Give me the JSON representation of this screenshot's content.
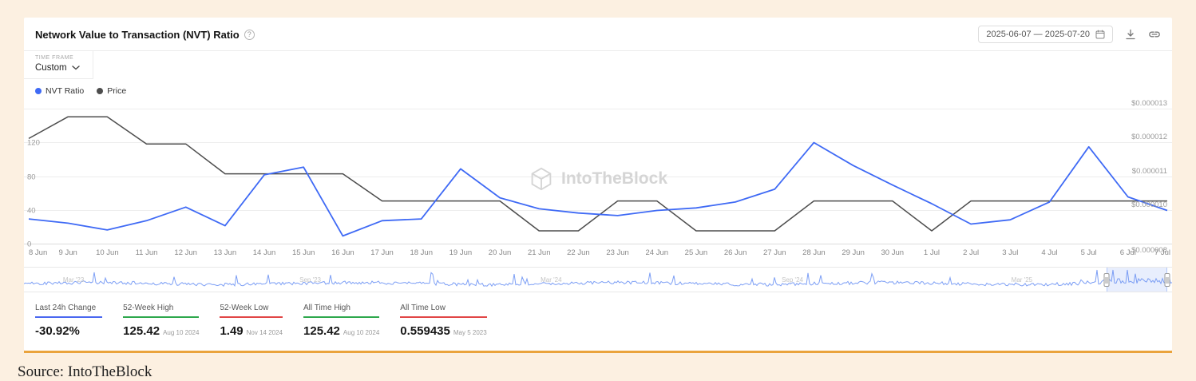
{
  "page": {
    "source_caption": "Source: IntoTheBlock"
  },
  "header": {
    "title": "Network Value to Transaction (NVT) Ratio",
    "info_glyph": "?",
    "date_range": "2025-06-07 — 2025-07-20"
  },
  "controls": {
    "time_frame_label": "TIME FRAME",
    "time_frame_value": "Custom"
  },
  "legend": [
    {
      "label": "NVT Ratio",
      "color": "#3f6af5"
    },
    {
      "label": "Price",
      "color": "#4d4d4d"
    }
  ],
  "watermark": {
    "text": "IntoTheBlock"
  },
  "chart_data": {
    "type": "line",
    "title": "Network Value to Transaction (NVT) Ratio",
    "grid": true,
    "legend_position": "top-left",
    "x": [
      "8 Jun",
      "9 Jun",
      "10 Jun",
      "11 Jun",
      "12 Jun",
      "13 Jun",
      "14 Jun",
      "15 Jun",
      "16 Jun",
      "17 Jun",
      "18 Jun",
      "19 Jun",
      "20 Jun",
      "21 Jun",
      "22 Jun",
      "23 Jun",
      "24 Jun",
      "25 Jun",
      "26 Jun",
      "27 Jun",
      "28 Jun",
      "29 Jun",
      "30 Jun",
      "1 Jul",
      "2 Jul",
      "3 Jul",
      "4 Jul",
      "5 Jul",
      "6 Jul",
      "7 Jul"
    ],
    "series": [
      {
        "name": "NVT Ratio",
        "axis": "left",
        "color": "#3f6af5",
        "values": [
          30,
          25,
          17,
          28,
          44,
          22,
          82,
          91,
          10,
          28,
          30,
          89,
          55,
          42,
          37,
          34,
          40,
          43,
          50,
          65,
          120,
          93,
          70,
          48,
          24,
          29,
          50,
          115,
          56,
          40
        ]
      },
      {
        "name": "Price",
        "axis": "right",
        "color": "#4d4d4d",
        "values": [
          1.19e-05,
          1.27e-05,
          1.27e-05,
          1.17e-05,
          1.17e-05,
          1.06e-05,
          1.06e-05,
          1.06e-05,
          1.06e-05,
          9.6e-06,
          9.6e-06,
          9.6e-06,
          9.6e-06,
          8.5e-06,
          8.5e-06,
          9.6e-06,
          9.6e-06,
          8.5e-06,
          8.5e-06,
          8.5e-06,
          9.6e-06,
          9.6e-06,
          9.6e-06,
          8.5e-06,
          9.6e-06,
          9.6e-06,
          9.6e-06,
          9.6e-06,
          9.6e-06,
          9.6e-06
        ]
      }
    ],
    "left_axis": {
      "min": 0,
      "max": 160,
      "tick_labels_top_to_bottom": [
        "",
        "120",
        "80",
        "40",
        "0"
      ]
    },
    "right_axis": {
      "min": 8e-06,
      "max": 1.3e-05,
      "tick_labels_top_to_bottom": [
        "$0.000013",
        "$0.000012",
        "$0.000011",
        "$0.000010",
        "$0.000008"
      ]
    }
  },
  "navigator": {
    "labels": [
      {
        "text": "Mar '23",
        "pct": 3.4
      },
      {
        "text": "Sep '23",
        "pct": 24
      },
      {
        "text": "Mar '24",
        "pct": 45
      },
      {
        "text": "Sep '24",
        "pct": 66
      },
      {
        "text": "Mar '25",
        "pct": 86
      }
    ],
    "selection_start_pct": 94.3,
    "selection_end_pct": 99.6
  },
  "stats": [
    {
      "label": "Last 24h Change",
      "value": "-30.92%",
      "date": "",
      "color": "#4a68f0"
    },
    {
      "label": "52-Week High",
      "value": "125.42",
      "date": "Aug 10 2024",
      "color": "#2ea84d"
    },
    {
      "label": "52-Week Low",
      "value": "1.49",
      "date": "Nov 14 2024",
      "color": "#e14747"
    },
    {
      "label": "All Time High",
      "value": "125.42",
      "date": "Aug 10 2024",
      "color": "#2ea84d"
    },
    {
      "label": "All Time Low",
      "value": "0.559435",
      "date": "May 5 2023",
      "color": "#e14747"
    }
  ]
}
